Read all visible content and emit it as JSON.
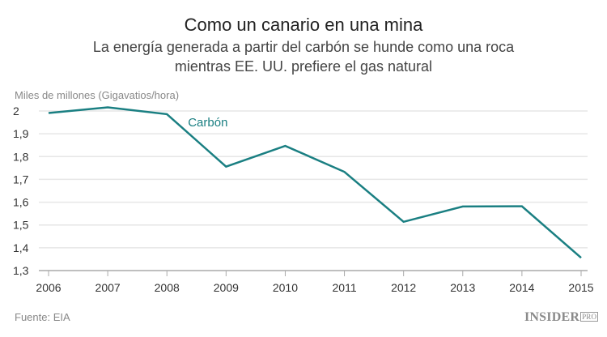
{
  "header": {
    "title": "Como un canario en una mina",
    "subtitle_line1": "La energía generada a partir del carbón se hunde como una roca",
    "subtitle_line2": "mientras EE. UU. prefiere el gas natural"
  },
  "footer": {
    "source": "Fuente: EIA",
    "logo": "INSIDER",
    "logo_badge": "PRO"
  },
  "chart_data": {
    "type": "line",
    "title": "Como un canario en una mina",
    "ylabel": "Miles de millones (Gigavatios/hora)",
    "xlabel": "",
    "x": [
      2006,
      2007,
      2008,
      2009,
      2010,
      2011,
      2012,
      2013,
      2014,
      2015
    ],
    "xtick_labels": [
      "2006",
      "2007",
      "2008",
      "2009",
      "2010",
      "2011",
      "2012",
      "2013",
      "2014",
      "2015"
    ],
    "ylim": [
      1.3,
      2.0
    ],
    "yticks": [
      1.3,
      1.4,
      1.5,
      1.6,
      1.7,
      1.8,
      1.9,
      2.0
    ],
    "ytick_labels": [
      "1,3",
      "1,4",
      "1,5",
      "1,6",
      "1,7",
      "1,8",
      "1,9",
      "2"
    ],
    "grid": "horizontal",
    "series": [
      {
        "name": "Carbón",
        "color": "#1a7f82",
        "values": [
          1.991,
          2.016,
          1.986,
          1.756,
          1.847,
          1.733,
          1.514,
          1.581,
          1.582,
          1.356
        ]
      }
    ]
  }
}
